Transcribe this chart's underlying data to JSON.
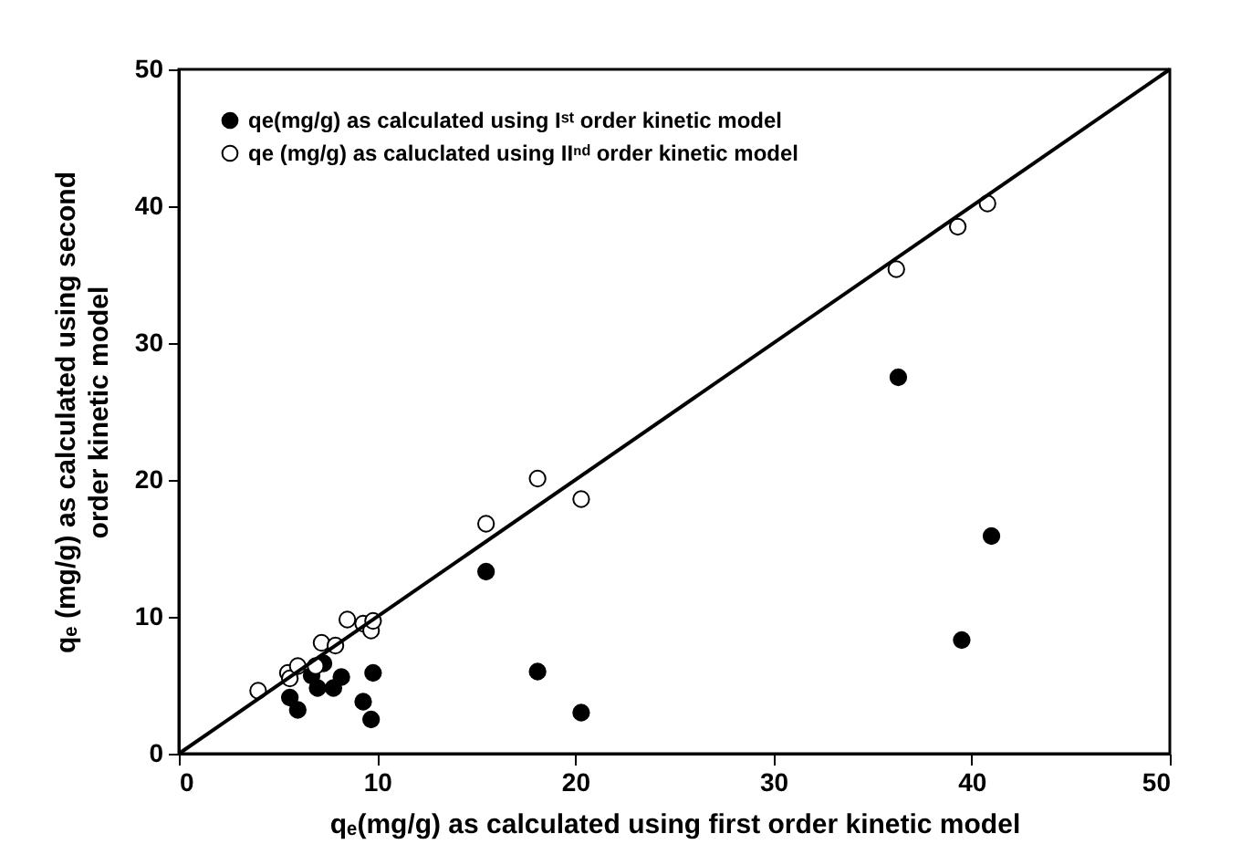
{
  "chart_data": {
    "type": "scatter",
    "xlabel": "qₑ(mg/g) as calculated using first order kinetic model",
    "ylabel": "qₑ (mg/g) as calculated using second order kinetic model",
    "xlim": [
      0,
      50
    ],
    "ylim": [
      0,
      50
    ],
    "xticks": [
      0,
      10,
      20,
      30,
      40,
      50
    ],
    "yticks": [
      0,
      10,
      20,
      30,
      40,
      50
    ],
    "grid": false,
    "legend": "top left",
    "marker": "circle",
    "series": [
      {
        "name": "qe(mg/g) as calculated using Iˢᵗ order kinetic model",
        "color": "#000000",
        "x": [
          5.6,
          6.0,
          6.7,
          7.0,
          7.3,
          7.8,
          8.2,
          9.3,
          9.7,
          9.8,
          15.5,
          18.1,
          20.3,
          36.3,
          39.5,
          41.0
        ],
        "values": [
          4.1,
          3.2,
          5.7,
          4.8,
          6.6,
          4.8,
          5.6,
          3.8,
          2.5,
          5.9,
          13.3,
          6.0,
          3.0,
          27.5,
          8.3,
          15.9
        ]
      },
      {
        "name": "qe (mg/g) as caluclated using IIⁿᵈ order kinetic model",
        "color": "#ffffff",
        "x": [
          4.0,
          5.5,
          5.6,
          6.0,
          6.9,
          7.2,
          7.9,
          8.5,
          9.3,
          9.7,
          9.8,
          15.5,
          18.1,
          20.3,
          36.2,
          39.3,
          40.8
        ],
        "values": [
          4.6,
          5.9,
          5.5,
          6.4,
          6.4,
          8.1,
          7.9,
          9.8,
          9.5,
          9.0,
          9.7,
          16.8,
          20.1,
          18.6,
          35.4,
          38.5,
          40.2
        ]
      },
      {
        "type": "line",
        "color": "#000000",
        "line_style": "solid",
        "marker": "none",
        "x": [
          0,
          50
        ],
        "values": [
          0,
          50
        ]
      }
    ]
  }
}
